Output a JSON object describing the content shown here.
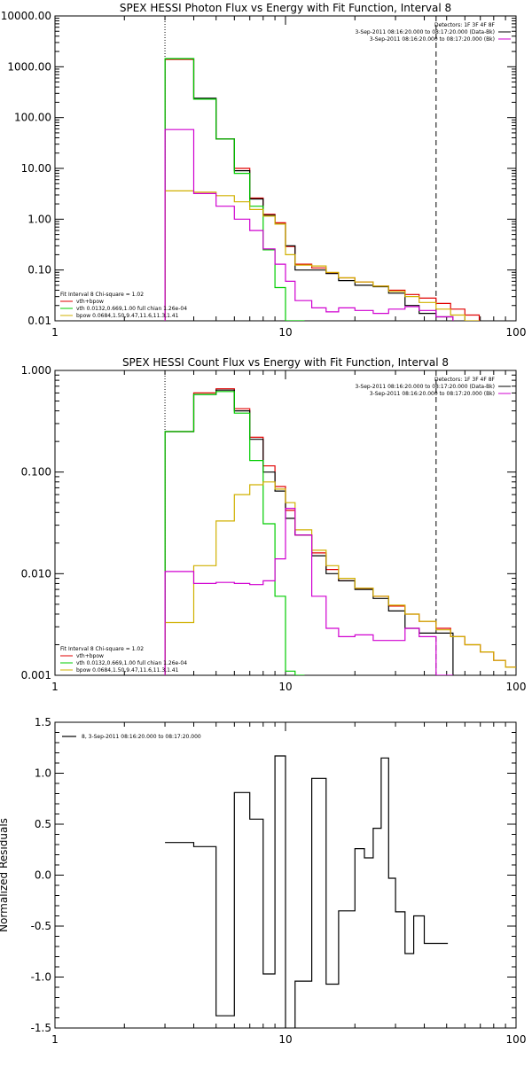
{
  "chart_data": [
    {
      "type": "line",
      "step": true,
      "title": "SPEX HESSI Photon Flux vs Energy with Fit Function, Interval 8",
      "xlabel": "",
      "ylabel": "",
      "xscale": "log",
      "yscale": "log",
      "xlim": [
        1,
        100
      ],
      "ylim": [
        0.01,
        10000
      ],
      "x_ticks": [
        {
          "v": 1,
          "label": "1"
        },
        {
          "v": 10,
          "label": "10"
        },
        {
          "v": 100,
          "label": "100"
        }
      ],
      "y_ticks": [
        {
          "v": 0.01,
          "label": "0.01"
        },
        {
          "v": 0.1,
          "label": "0.10"
        },
        {
          "v": 1,
          "label": "1.00"
        },
        {
          "v": 10,
          "label": "10.00"
        },
        {
          "v": 100,
          "label": "100.00"
        },
        {
          "v": 1000,
          "label": "1000.00"
        },
        {
          "v": 10000,
          "label": "10000.00"
        }
      ],
      "vlines": [
        {
          "x": 3,
          "style": "dotted",
          "color": "#000000"
        },
        {
          "x": 45,
          "style": "dashed",
          "color": "#000000"
        }
      ],
      "legend_top": {
        "position": "top-right",
        "lines": [
          {
            "text": "Detectors: 1F 3F 4F 8F",
            "color": ""
          },
          {
            "text": "3-Sep-2011 08:16:20.000 to 08:17:20.000 (Data-Bk)",
            "color": "#000000"
          },
          {
            "text": "3-Sep-2011 08:16:20.000 to 08:17:20.000 (Bk)",
            "color": "#d000d0"
          }
        ]
      },
      "legend_bottom": {
        "position": "bottom-left",
        "lines": [
          {
            "text": "Fit Interval 8   Chi-square = 1.02",
            "color": ""
          },
          {
            "text": "vth+bpow",
            "color": "#e00000"
          },
          {
            "text": "vth 0.0132,0.669,1.00  full chian 1.26e-04",
            "color": "#00cc00"
          },
          {
            "text": "bpow 0.0684,1.50,9.47,11.6,11.3,1.41",
            "color": "#d0b000"
          }
        ]
      },
      "series": [
        {
          "name": "vth+bpow",
          "color": "#e00000",
          "x": [
            3,
            4,
            5,
            6,
            7,
            8,
            9,
            10,
            11,
            13,
            15,
            17,
            20,
            24,
            28,
            33,
            38,
            45,
            52,
            60
          ],
          "y": [
            1400,
            230,
            38,
            10,
            2.6,
            1.25,
            0.85,
            0.29,
            0.13,
            0.11,
            0.087,
            0.07,
            0.058,
            0.048,
            0.04,
            0.033,
            0.028,
            0.022,
            0.017,
            0.013
          ]
        },
        {
          "name": "Data-Bk",
          "color": "#000000",
          "x": [
            3,
            4,
            5,
            6,
            7,
            8,
            9,
            10,
            11,
            13,
            15,
            17,
            20,
            24,
            28,
            33,
            38,
            45
          ],
          "y": [
            1450,
            240,
            38,
            9,
            2.5,
            1.2,
            0.8,
            0.3,
            0.1,
            0.1,
            0.085,
            0.062,
            0.05,
            0.047,
            0.035,
            0.02,
            0.014,
            0.012
          ]
        },
        {
          "name": "vth",
          "color": "#00cc00",
          "x": [
            3,
            4,
            5,
            6,
            7,
            8,
            9,
            10,
            11
          ],
          "y": [
            1450,
            230,
            38,
            8,
            1.8,
            0.25,
            0.045,
            0.01,
            0.01
          ]
        },
        {
          "name": "bpow",
          "color": "#d0b000",
          "x": [
            3,
            4,
            5,
            6,
            7,
            8,
            9,
            10,
            11,
            13,
            15,
            17,
            20,
            24,
            28,
            33,
            38,
            45,
            52,
            60
          ],
          "y": [
            3.6,
            3.4,
            2.9,
            2.2,
            1.55,
            1.15,
            0.8,
            0.2,
            0.125,
            0.12,
            0.09,
            0.07,
            0.058,
            0.048,
            0.038,
            0.03,
            0.023,
            0.017,
            0.013,
            0.01
          ]
        },
        {
          "name": "Bk",
          "color": "#d000d0",
          "x": [
            3,
            4,
            5,
            6,
            7,
            8,
            9,
            10,
            11,
            13,
            15,
            17,
            20,
            24,
            28,
            33,
            38,
            45
          ],
          "y": [
            58,
            3.2,
            1.8,
            1.0,
            0.6,
            0.26,
            0.13,
            0.06,
            0.025,
            0.018,
            0.015,
            0.018,
            0.016,
            0.014,
            0.017,
            0.019,
            0.016,
            0.012
          ]
        }
      ]
    },
    {
      "type": "line",
      "step": true,
      "title": "SPEX HESSI Count Flux vs Energy with Fit Function, Interval 8",
      "xlabel": "",
      "ylabel": "",
      "xscale": "log",
      "yscale": "log",
      "xlim": [
        1,
        100
      ],
      "ylim": [
        0.001,
        1
      ],
      "x_ticks": [
        {
          "v": 1,
          "label": "1"
        },
        {
          "v": 10,
          "label": "10"
        },
        {
          "v": 100,
          "label": "100"
        }
      ],
      "y_ticks": [
        {
          "v": 0.001,
          "label": "0.001"
        },
        {
          "v": 0.01,
          "label": "0.010"
        },
        {
          "v": 0.1,
          "label": "0.100"
        },
        {
          "v": 1,
          "label": "1.000"
        }
      ],
      "vlines": [
        {
          "x": 3,
          "style": "dotted",
          "color": "#000000"
        },
        {
          "x": 45,
          "style": "dashed",
          "color": "#000000"
        }
      ],
      "legend_top": {
        "position": "top-right",
        "lines": [
          {
            "text": "Detectors: 1F 3F 4F 8F",
            "color": ""
          },
          {
            "text": "3-Sep-2011 08:16:20.000 to 08:17:20.000 (Data-Bk)",
            "color": "#000000"
          },
          {
            "text": "3-Sep-2011 08:16:20.000 to 08:17:20.000 (Bk)",
            "color": "#d000d0"
          }
        ]
      },
      "legend_bottom": {
        "position": "bottom-left",
        "lines": [
          {
            "text": "Fit Interval 8   Chi-square = 1.02",
            "color": ""
          },
          {
            "text": "vth+bpow",
            "color": "#e00000"
          },
          {
            "text": "vth 0.0132,0.669,1.00  full chian 1.26e-04",
            "color": "#00cc00"
          },
          {
            "text": "bpow 0.0684,1.50,9.47,11.6,11.3,1.41",
            "color": "#d0b000"
          }
        ]
      },
      "series": [
        {
          "name": "vth+bpow",
          "color": "#e00000",
          "x": [
            3,
            4,
            5,
            6,
            7,
            8,
            9,
            10,
            11,
            13,
            15,
            17,
            20,
            24,
            28,
            33,
            38,
            45,
            52,
            60,
            70,
            80,
            90,
            100
          ],
          "y": [
            0.25,
            0.6,
            0.66,
            0.42,
            0.22,
            0.115,
            0.072,
            0.042,
            0.024,
            0.016,
            0.011,
            0.0085,
            0.0072,
            0.006,
            0.0048,
            0.004,
            0.0034,
            0.0029,
            0.0024,
            0.002,
            0.0017,
            0.0014,
            0.0012,
            0.0012
          ]
        },
        {
          "name": "Data-Bk",
          "color": "#000000",
          "x": [
            3,
            4,
            5,
            6,
            7,
            8,
            9,
            10,
            11,
            13,
            15,
            17,
            20,
            24,
            28,
            33,
            38,
            45
          ],
          "y": [
            0.25,
            0.58,
            0.64,
            0.4,
            0.21,
            0.1,
            0.065,
            0.035,
            0.024,
            0.015,
            0.01,
            0.0085,
            0.007,
            0.0057,
            0.0043,
            0.0029,
            0.0026,
            0.0026
          ]
        },
        {
          "name": "vth",
          "color": "#00cc00",
          "x": [
            3,
            4,
            5,
            6,
            7,
            8,
            9,
            10,
            11
          ],
          "y": [
            0.25,
            0.58,
            0.62,
            0.38,
            0.13,
            0.031,
            0.006,
            0.0011,
            0.001
          ]
        },
        {
          "name": "bpow",
          "color": "#d0b000",
          "x": [
            3,
            4,
            5,
            6,
            7,
            8,
            9,
            10,
            11,
            13,
            15,
            17,
            20,
            24,
            28,
            33,
            38,
            45,
            52,
            60,
            70,
            80,
            90,
            100
          ],
          "y": [
            0.0033,
            0.012,
            0.033,
            0.06,
            0.075,
            0.08,
            0.068,
            0.05,
            0.027,
            0.017,
            0.012,
            0.009,
            0.0072,
            0.006,
            0.0049,
            0.004,
            0.0034,
            0.0028,
            0.0024,
            0.002,
            0.0017,
            0.0014,
            0.0012,
            0.0012
          ]
        },
        {
          "name": "Bk",
          "color": "#d000d0",
          "x": [
            3,
            4,
            5,
            6,
            7,
            8,
            9,
            10,
            11,
            13,
            15,
            17,
            20,
            24,
            28,
            33,
            38,
            45
          ],
          "y": [
            0.0105,
            0.008,
            0.0082,
            0.008,
            0.0078,
            0.0085,
            0.014,
            0.044,
            0.024,
            0.006,
            0.0029,
            0.0024,
            0.0025,
            0.0022,
            0.0022,
            0.0029,
            0.0024,
            0.001
          ]
        }
      ]
    },
    {
      "type": "line",
      "step": true,
      "title": "",
      "xlabel": "",
      "ylabel": "Normalized Residuals",
      "xscale": "log",
      "yscale": "linear",
      "xlim": [
        1,
        100
      ],
      "ylim": [
        -1.5,
        1.5
      ],
      "x_ticks": [
        {
          "v": 1,
          "label": "1"
        },
        {
          "v": 10,
          "label": "10"
        },
        {
          "v": 100,
          "label": "100"
        }
      ],
      "y_ticks": [
        {
          "v": -1.5,
          "label": "-1.5"
        },
        {
          "v": -1.0,
          "label": "-1.0"
        },
        {
          "v": -0.5,
          "label": "-0.5"
        },
        {
          "v": 0.0,
          "label": "0.0"
        },
        {
          "v": 0.5,
          "label": "0.5"
        },
        {
          "v": 1.0,
          "label": "1.0"
        },
        {
          "v": 1.5,
          "label": "1.5"
        }
      ],
      "vlines": [],
      "legend_top": {
        "position": "top-left",
        "lines": [
          {
            "text": "8,  3-Sep-2011 08:16:20.000 to 08:17:20.000",
            "color": "#000000"
          }
        ]
      },
      "legend_bottom": {
        "position": "bottom-left",
        "lines": []
      },
      "series": [
        {
          "name": "8,  3-Sep-2011 08:16:20.000 to 08:17:20.000",
          "color": "#000000",
          "x": [
            3,
            4,
            5,
            6,
            7,
            8,
            9,
            10,
            11,
            13,
            15,
            17,
            20,
            22,
            24,
            26,
            28,
            30,
            33,
            36,
            40,
            45
          ],
          "y": [
            0.32,
            0.28,
            -1.38,
            0.81,
            0.55,
            -0.97,
            1.17,
            -1.52,
            -1.04,
            0.95,
            -1.07,
            -0.35,
            0.26,
            0.17,
            0.46,
            1.15,
            -0.03,
            -0.36,
            -0.77,
            -0.4,
            -0.67,
            -0.67
          ]
        }
      ]
    }
  ]
}
